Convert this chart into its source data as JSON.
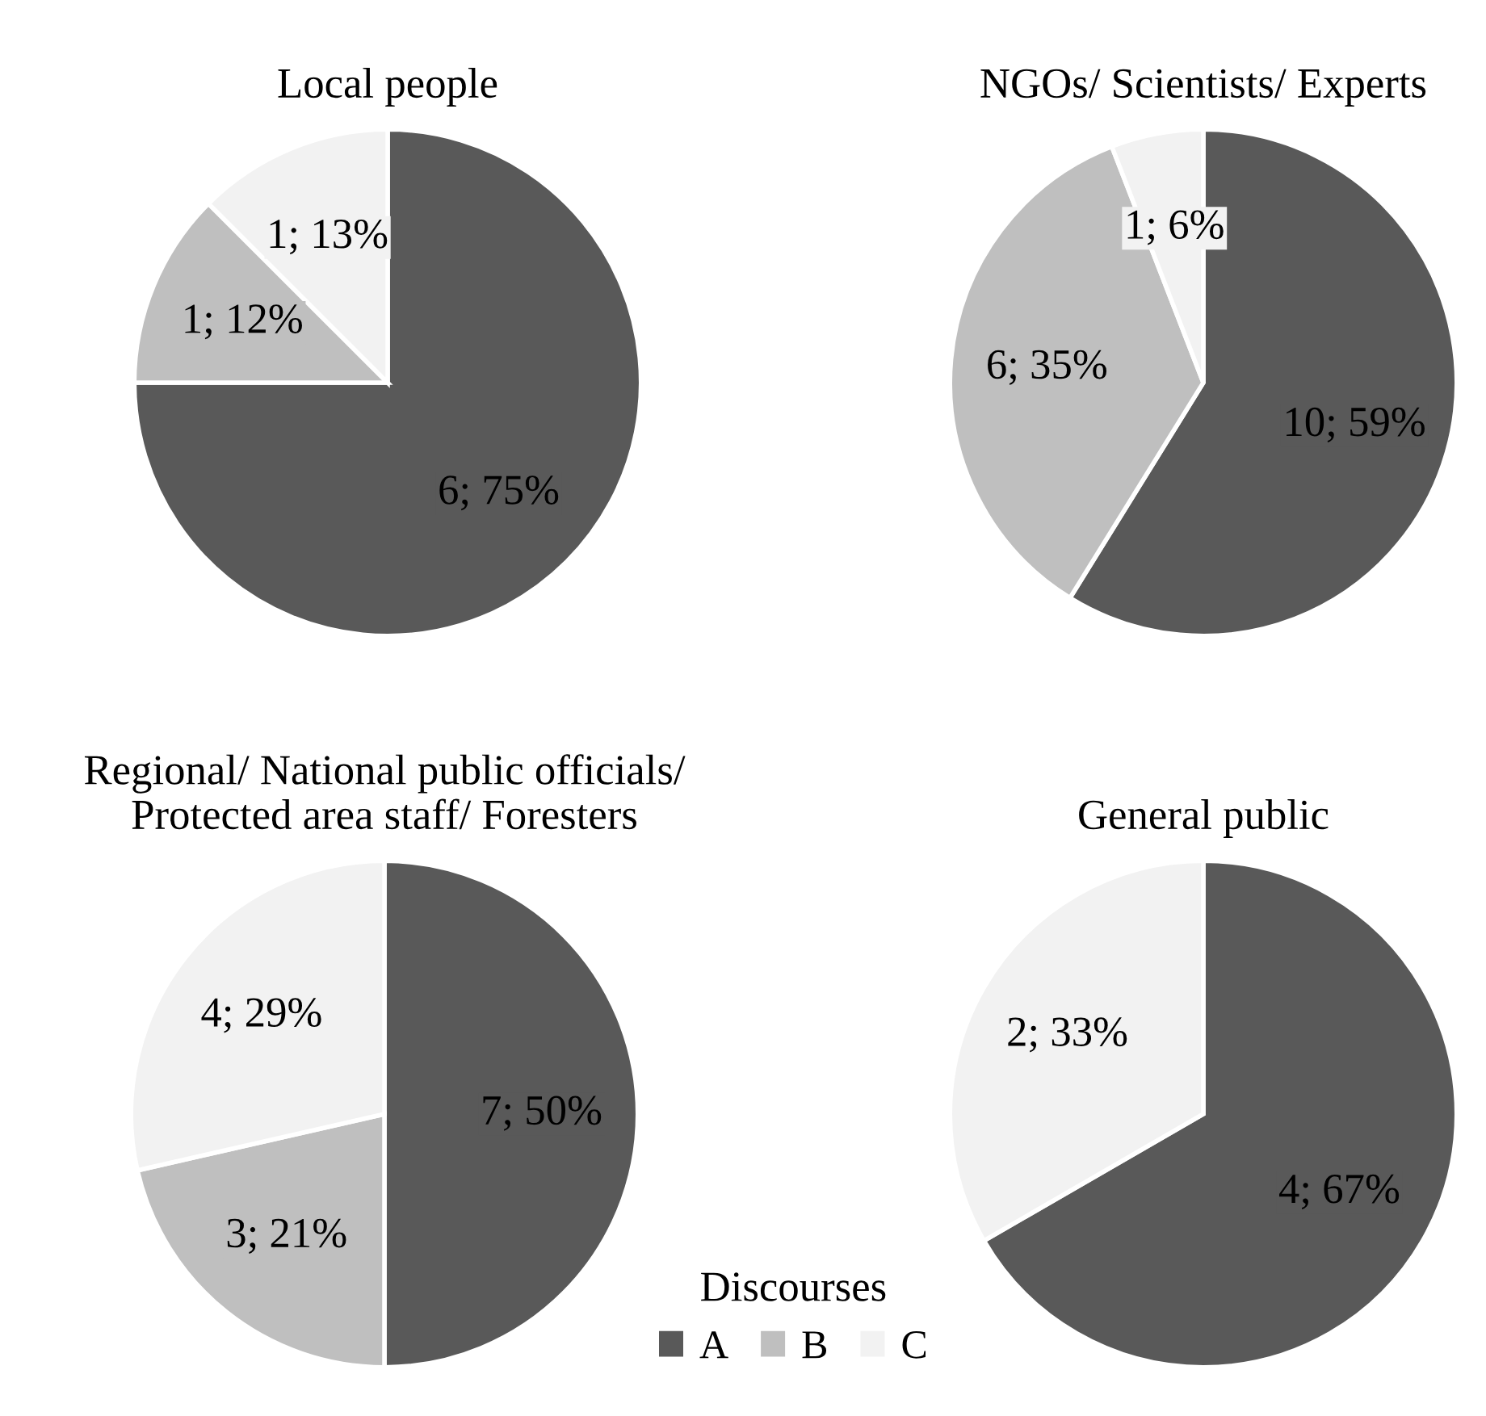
{
  "chart_data": [
    {
      "type": "pie",
      "title": "Local people",
      "categories": [
        null,
        null,
        null
      ],
      "values": [
        6,
        1,
        1
      ],
      "colors": [
        "#595959",
        "#bfbfbf",
        "#f2f2f2"
      ],
      "value_labels": [
        "6; 75%",
        "1; 12%",
        "1; 13%"
      ]
    },
    {
      "type": "pie",
      "title": "NGOs/ Scientists/ Experts",
      "categories": [
        null,
        null,
        null
      ],
      "values": [
        10,
        6,
        1
      ],
      "colors": [
        "#595959",
        "#bfbfbf",
        "#f2f2f2"
      ],
      "value_labels": [
        "10; 59%",
        "6; 35%",
        "1; 6%"
      ]
    },
    {
      "type": "pie",
      "title": "Regional/ National public officials/\nProtected area staff/ Foresters",
      "categories": [
        "A",
        "B",
        "C"
      ],
      "values": [
        7,
        3,
        4
      ],
      "colors": [
        "#595959",
        "#bfbfbf",
        "#f2f2f2"
      ],
      "value_labels": [
        "7; 50%",
        "3; 21%",
        "4; 29%"
      ],
      "legend": "bottom right",
      "legend_title": "Discourses"
    },
    {
      "type": "pie",
      "title": "General public",
      "categories": [
        null,
        null,
        null
      ],
      "values": [
        4,
        null,
        2
      ],
      "colors": [
        "#595959",
        "#bfbfbf",
        "#f2f2f2"
      ],
      "value_labels": [
        "4; 67%",
        null,
        "2; 33%"
      ]
    }
  ]
}
